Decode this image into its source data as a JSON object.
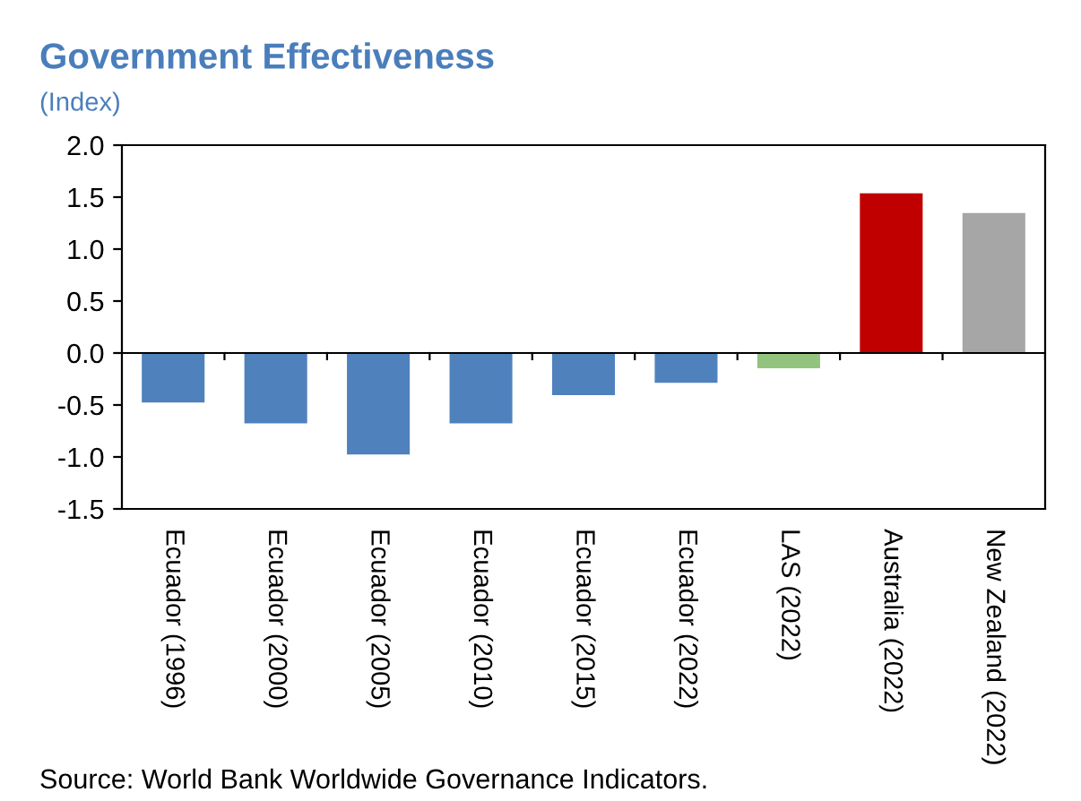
{
  "chart_data": {
    "type": "bar",
    "title": "Government Effectiveness",
    "subtitle": "(Index)",
    "categories": [
      "Ecuador (1996)",
      "Ecuador (2000)",
      "Ecuador (2005)",
      "Ecuador (2010)",
      "Ecuador (2015)",
      "Ecuador (2022)",
      "LAS (2022)",
      "Australia (2022)",
      "New Zealand (2022)"
    ],
    "values": [
      -0.47,
      -0.67,
      -0.97,
      -0.67,
      -0.4,
      -0.28,
      -0.14,
      1.53,
      1.34
    ],
    "colors": [
      "#4f81bd",
      "#4f81bd",
      "#4f81bd",
      "#4f81bd",
      "#4f81bd",
      "#4f81bd",
      "#93c47d",
      "#c00000",
      "#a6a6a6"
    ],
    "ylim": [
      -1.5,
      2.0
    ],
    "yticks": [
      {
        "value": -1.5,
        "label": "-1.5"
      },
      {
        "value": -1.0,
        "label": "-1.0"
      },
      {
        "value": -0.5,
        "label": "-0.5"
      },
      {
        "value": 0.0,
        "label": "0.0"
      },
      {
        "value": 0.5,
        "label": "0.5"
      },
      {
        "value": 1.0,
        "label": "1.0"
      },
      {
        "value": 1.5,
        "label": "1.5"
      },
      {
        "value": 2.0,
        "label": "2.0"
      }
    ],
    "ref_lines": [
      {
        "axis": "y",
        "value": 0,
        "color": "#000000"
      }
    ],
    "grid": false,
    "legend": false,
    "annotations": [
      "Source: World Bank Worldwide Governance Indicators."
    ]
  }
}
